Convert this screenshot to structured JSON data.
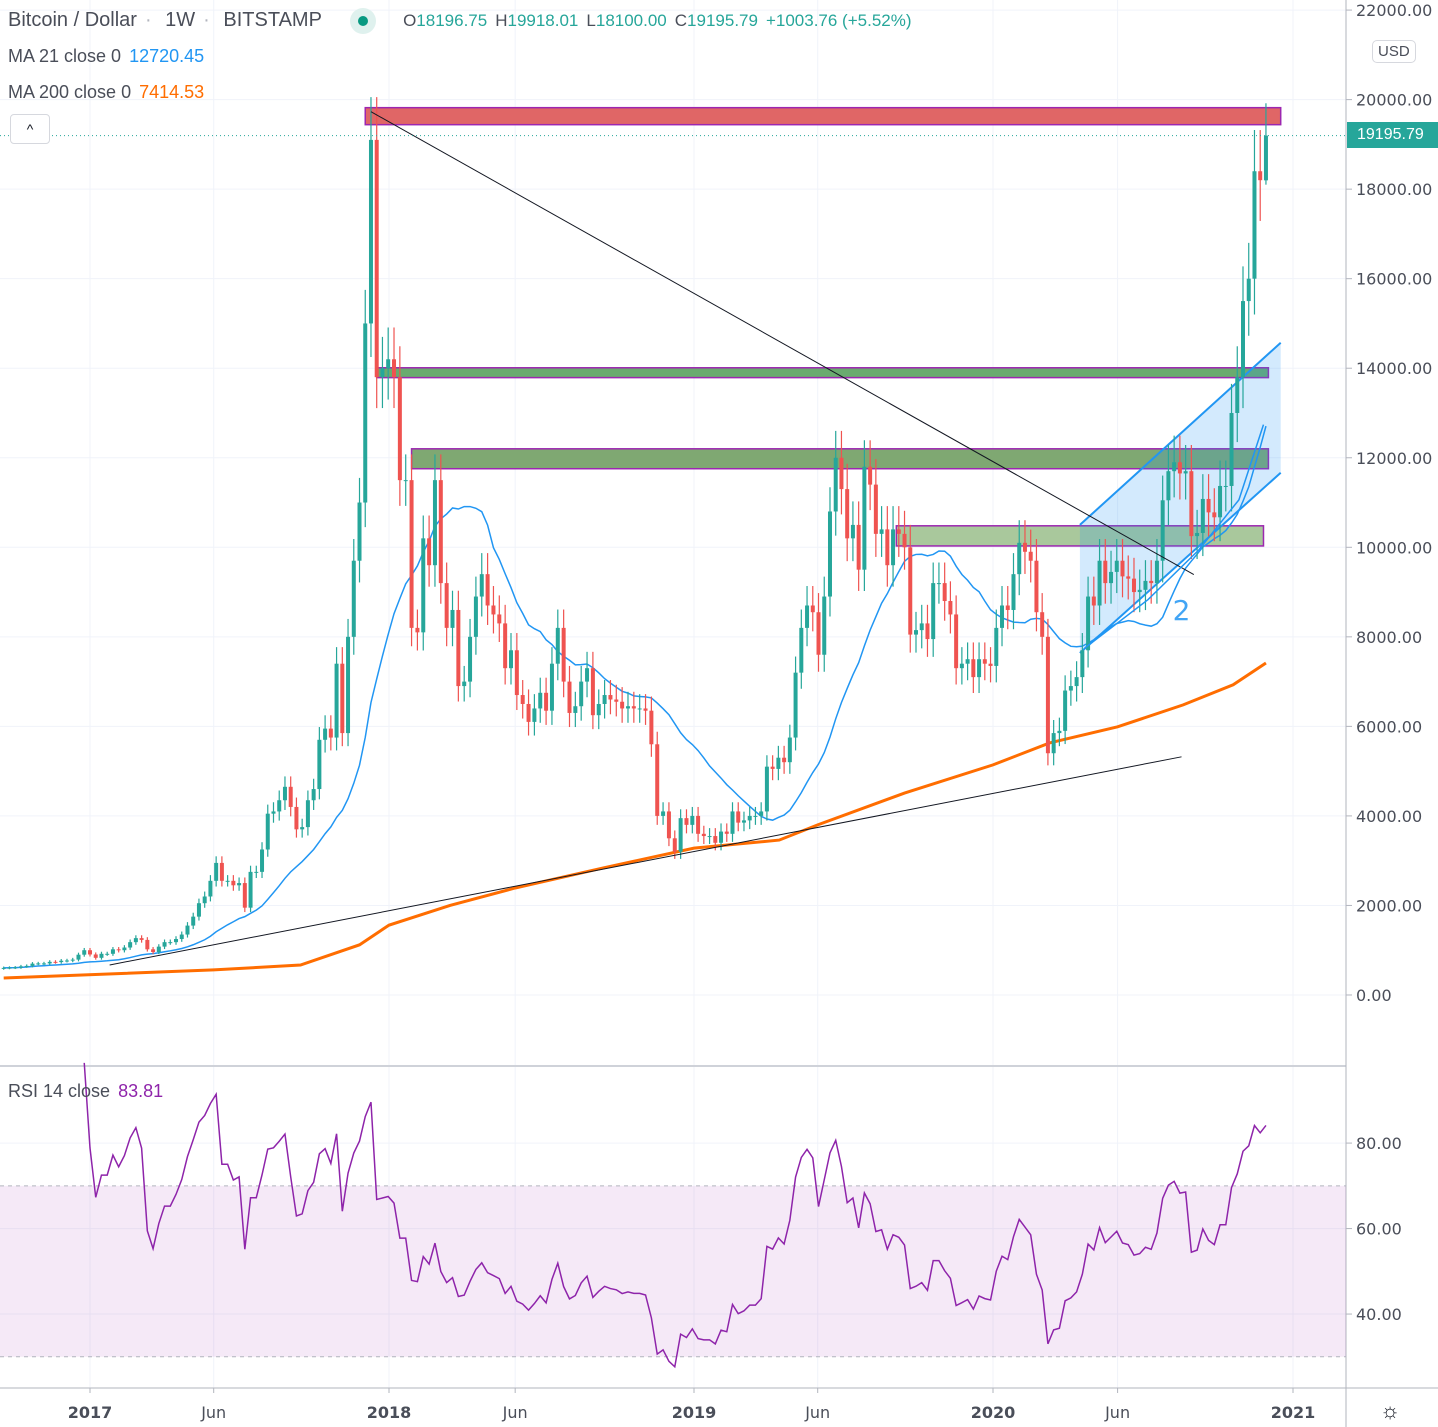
{
  "header": {
    "symbol": "Bitcoin / Dollar",
    "interval": "1W",
    "exchange": "BITSTAMP",
    "o_label": "O",
    "o": "18196.75",
    "h_label": "H",
    "h": "19918.01",
    "l_label": "L",
    "l": "18100.00",
    "c_label": "C",
    "c": "19195.79",
    "change": "+1003.76 (+5.52%)"
  },
  "indicators": {
    "ma21": {
      "label": "MA 21 close 0",
      "value": "12720.45",
      "color": "#2196f3"
    },
    "ma200": {
      "label": "MA 200 close 0",
      "value": "7414.53",
      "color": "#ff6d00"
    },
    "rsi": {
      "label": "RSI 14 close",
      "value": "83.81",
      "color": "#8e24aa"
    }
  },
  "price_axis": {
    "currency": "USD",
    "last_price": "19195.79",
    "ticks": [
      "0.00",
      "2000.00",
      "4000.00",
      "6000.00",
      "8000.00",
      "10000.00",
      "12000.00",
      "14000.00",
      "16000.00",
      "18000.00",
      "20000.00",
      "22000.00"
    ]
  },
  "rsi_axis": {
    "ticks": [
      "40.00",
      "60.00",
      "80.00"
    ]
  },
  "time_axis": {
    "ticks": [
      {
        "label": "2017",
        "date": "2017-01-01"
      },
      {
        "label": "Jun",
        "date": "2017-06-01"
      },
      {
        "label": "2018",
        "date": "2018-01-01"
      },
      {
        "label": "Jun",
        "date": "2018-06-01"
      },
      {
        "label": "2019",
        "date": "2019-01-01"
      },
      {
        "label": "Jun",
        "date": "2019-06-01"
      },
      {
        "label": "2020",
        "date": "2020-01-01"
      },
      {
        "label": "Jun",
        "date": "2020-06-01"
      },
      {
        "label": "2021",
        "date": "2021-01-01"
      }
    ]
  },
  "chart_data": {
    "type": "candlestick",
    "interval": "1W",
    "start_date": "2016-09-18",
    "ylim": [
      -1564,
      22225
    ],
    "rsi_ylim": [
      22.7,
      97.8
    ],
    "rsi_bands": [
      30,
      70
    ],
    "colors": {
      "up": "#26a69a",
      "down": "#ef5350",
      "ma21": "#2196f3",
      "ma200": "#ff6d00",
      "rsi": "#8e24aa"
    },
    "last_candle": {
      "open": 18196.75,
      "high": 19918.01,
      "low": 18100.0,
      "close": 19195.79
    },
    "closes": [
      605,
      610,
      615,
      640,
      650,
      700,
      705,
      705,
      740,
      735,
      765,
      770,
      790,
      900,
      1000,
      905,
      830,
      920,
      920,
      1020,
      1000,
      1060,
      1180,
      1270,
      1230,
      1020,
      960,
      1080,
      1180,
      1180,
      1250,
      1350,
      1550,
      1750,
      2050,
      2200,
      2550,
      2950,
      2550,
      2550,
      2450,
      2500,
      1950,
      2750,
      2750,
      3250,
      4050,
      4100,
      4350,
      4650,
      4200,
      3700,
      3750,
      4350,
      4600,
      5700,
      5950,
      5750,
      7400,
      5850,
      8000,
      9700,
      11000,
      15000,
      19100,
      13800,
      14000,
      14200,
      13800,
      11500,
      11500,
      8200,
      8100,
      10200,
      9600,
      11500,
      9200,
      8200,
      8600,
      6900,
      7000,
      8000,
      8900,
      9400,
      8700,
      8500,
      8300,
      7300,
      7700,
      6700,
      6500,
      6100,
      6400,
      6750,
      6350,
      7400,
      8200,
      7000,
      6300,
      6450,
      7000,
      7300,
      6250,
      6500,
      6700,
      6600,
      6550,
      6400,
      6450,
      6400,
      6400,
      6350,
      5600,
      4000,
      4100,
      3500,
      3200,
      3950,
      3800,
      4000,
      3600,
      3550,
      3550,
      3400,
      3650,
      3600,
      4100,
      3850,
      3900,
      4000,
      4000,
      4100,
      5100,
      5050,
      5300,
      5200,
      5750,
      7200,
      8200,
      8700,
      8550,
      7600,
      8900,
      10800,
      12000,
      11300,
      10200,
      10500,
      9500,
      11800,
      11400,
      10300,
      10400,
      9600,
      10400,
      10300,
      10000,
      8050,
      8150,
      8300,
      7950,
      9200,
      9200,
      8800,
      8500,
      7300,
      7400,
      7500,
      7100,
      7500,
      7400,
      7350,
      8200,
      8700,
      8600,
      9400,
      10100,
      9900,
      9700,
      8550,
      8000,
      5400,
      5850,
      5900,
      6800,
      6900,
      7100,
      7700,
      8900,
      8700,
      9700,
      9200,
      9450,
      9700,
      9350,
      9300,
      9000,
      9050,
      9250,
      9200,
      9700,
      11050,
      11700,
      11900,
      11650,
      11700,
      10250,
      10320,
      11080,
      10780,
      10670,
      11370,
      11370,
      13000,
      13800,
      15500,
      16000,
      18400,
      18200,
      19195.79
    ],
    "ma200_points": [
      [
        "2016-09-18",
        380
      ],
      [
        "2017-06-01",
        560
      ],
      [
        "2017-09-15",
        670
      ],
      [
        "2017-11-26",
        1120
      ],
      [
        "2018-01-01",
        1560
      ],
      [
        "2018-03-15",
        2000
      ],
      [
        "2018-06-01",
        2390
      ],
      [
        "2018-09-15",
        2840
      ],
      [
        "2019-01-01",
        3280
      ],
      [
        "2019-04-15",
        3460
      ],
      [
        "2019-06-01",
        3800
      ],
      [
        "2019-09-15",
        4510
      ],
      [
        "2020-01-01",
        5140
      ],
      [
        "2020-03-10",
        5630
      ],
      [
        "2020-06-01",
        5990
      ],
      [
        "2020-08-20",
        6480
      ],
      [
        "2020-10-20",
        6930
      ],
      [
        "2020-11-29",
        7414.53
      ]
    ],
    "annotations": {
      "zones": [
        {
          "from": "2017-12-03",
          "to": "2020-12-17",
          "top": 19820,
          "bottom": 19440,
          "color": "#e06666"
        },
        {
          "from": "2017-12-17",
          "to": "2020-12-02",
          "top": 14010,
          "bottom": 13790,
          "color": "#6aab6f"
        },
        {
          "from": "2018-01-28",
          "to": "2020-12-02",
          "top": 12200,
          "bottom": 11755,
          "color": "#7fa872"
        },
        {
          "from": "2019-09-05",
          "to": "2020-11-26",
          "top": 10480,
          "bottom": 10030,
          "color": "#a9c89c"
        }
      ],
      "trendlines": [
        {
          "from": [
            "2017-12-10",
            19730
          ],
          "to": [
            "2020-09-02",
            9390
          ],
          "color": "#131722"
        },
        {
          "from": [
            "2017-01-25",
            670
          ],
          "to": [
            "2020-08-18",
            5320
          ],
          "color": "#131722"
        }
      ],
      "channel": {
        "points": [
          [
            "2020-04-16",
            10500
          ],
          [
            "2020-12-17",
            14570
          ],
          [
            "2020-12-17",
            11665
          ],
          [
            "2020-04-16",
            7640
          ]
        ],
        "color": "#2196f3"
      },
      "curve": {
        "points": [
          [
            "2020-04-22",
            7750
          ],
          [
            "2020-07-08",
            8830
          ],
          [
            "2020-09-08",
            9940
          ],
          [
            "2020-10-27",
            11060
          ],
          [
            "2020-11-26",
            12740
          ]
        ],
        "color": "#2196f3"
      },
      "channel_label": {
        "text": "2",
        "date": "2020-08-18",
        "price": 8600
      }
    }
  }
}
